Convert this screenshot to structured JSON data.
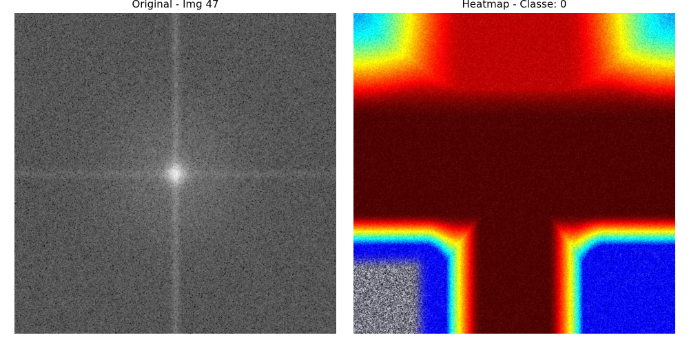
{
  "panels": [
    {
      "title": "Original - Img 47",
      "kind": "fft-magnitude-grayscale"
    },
    {
      "title": "Heatmap - Classe: 0",
      "kind": "jet-heatmap-overlay",
      "colormap": "jet"
    }
  ]
}
